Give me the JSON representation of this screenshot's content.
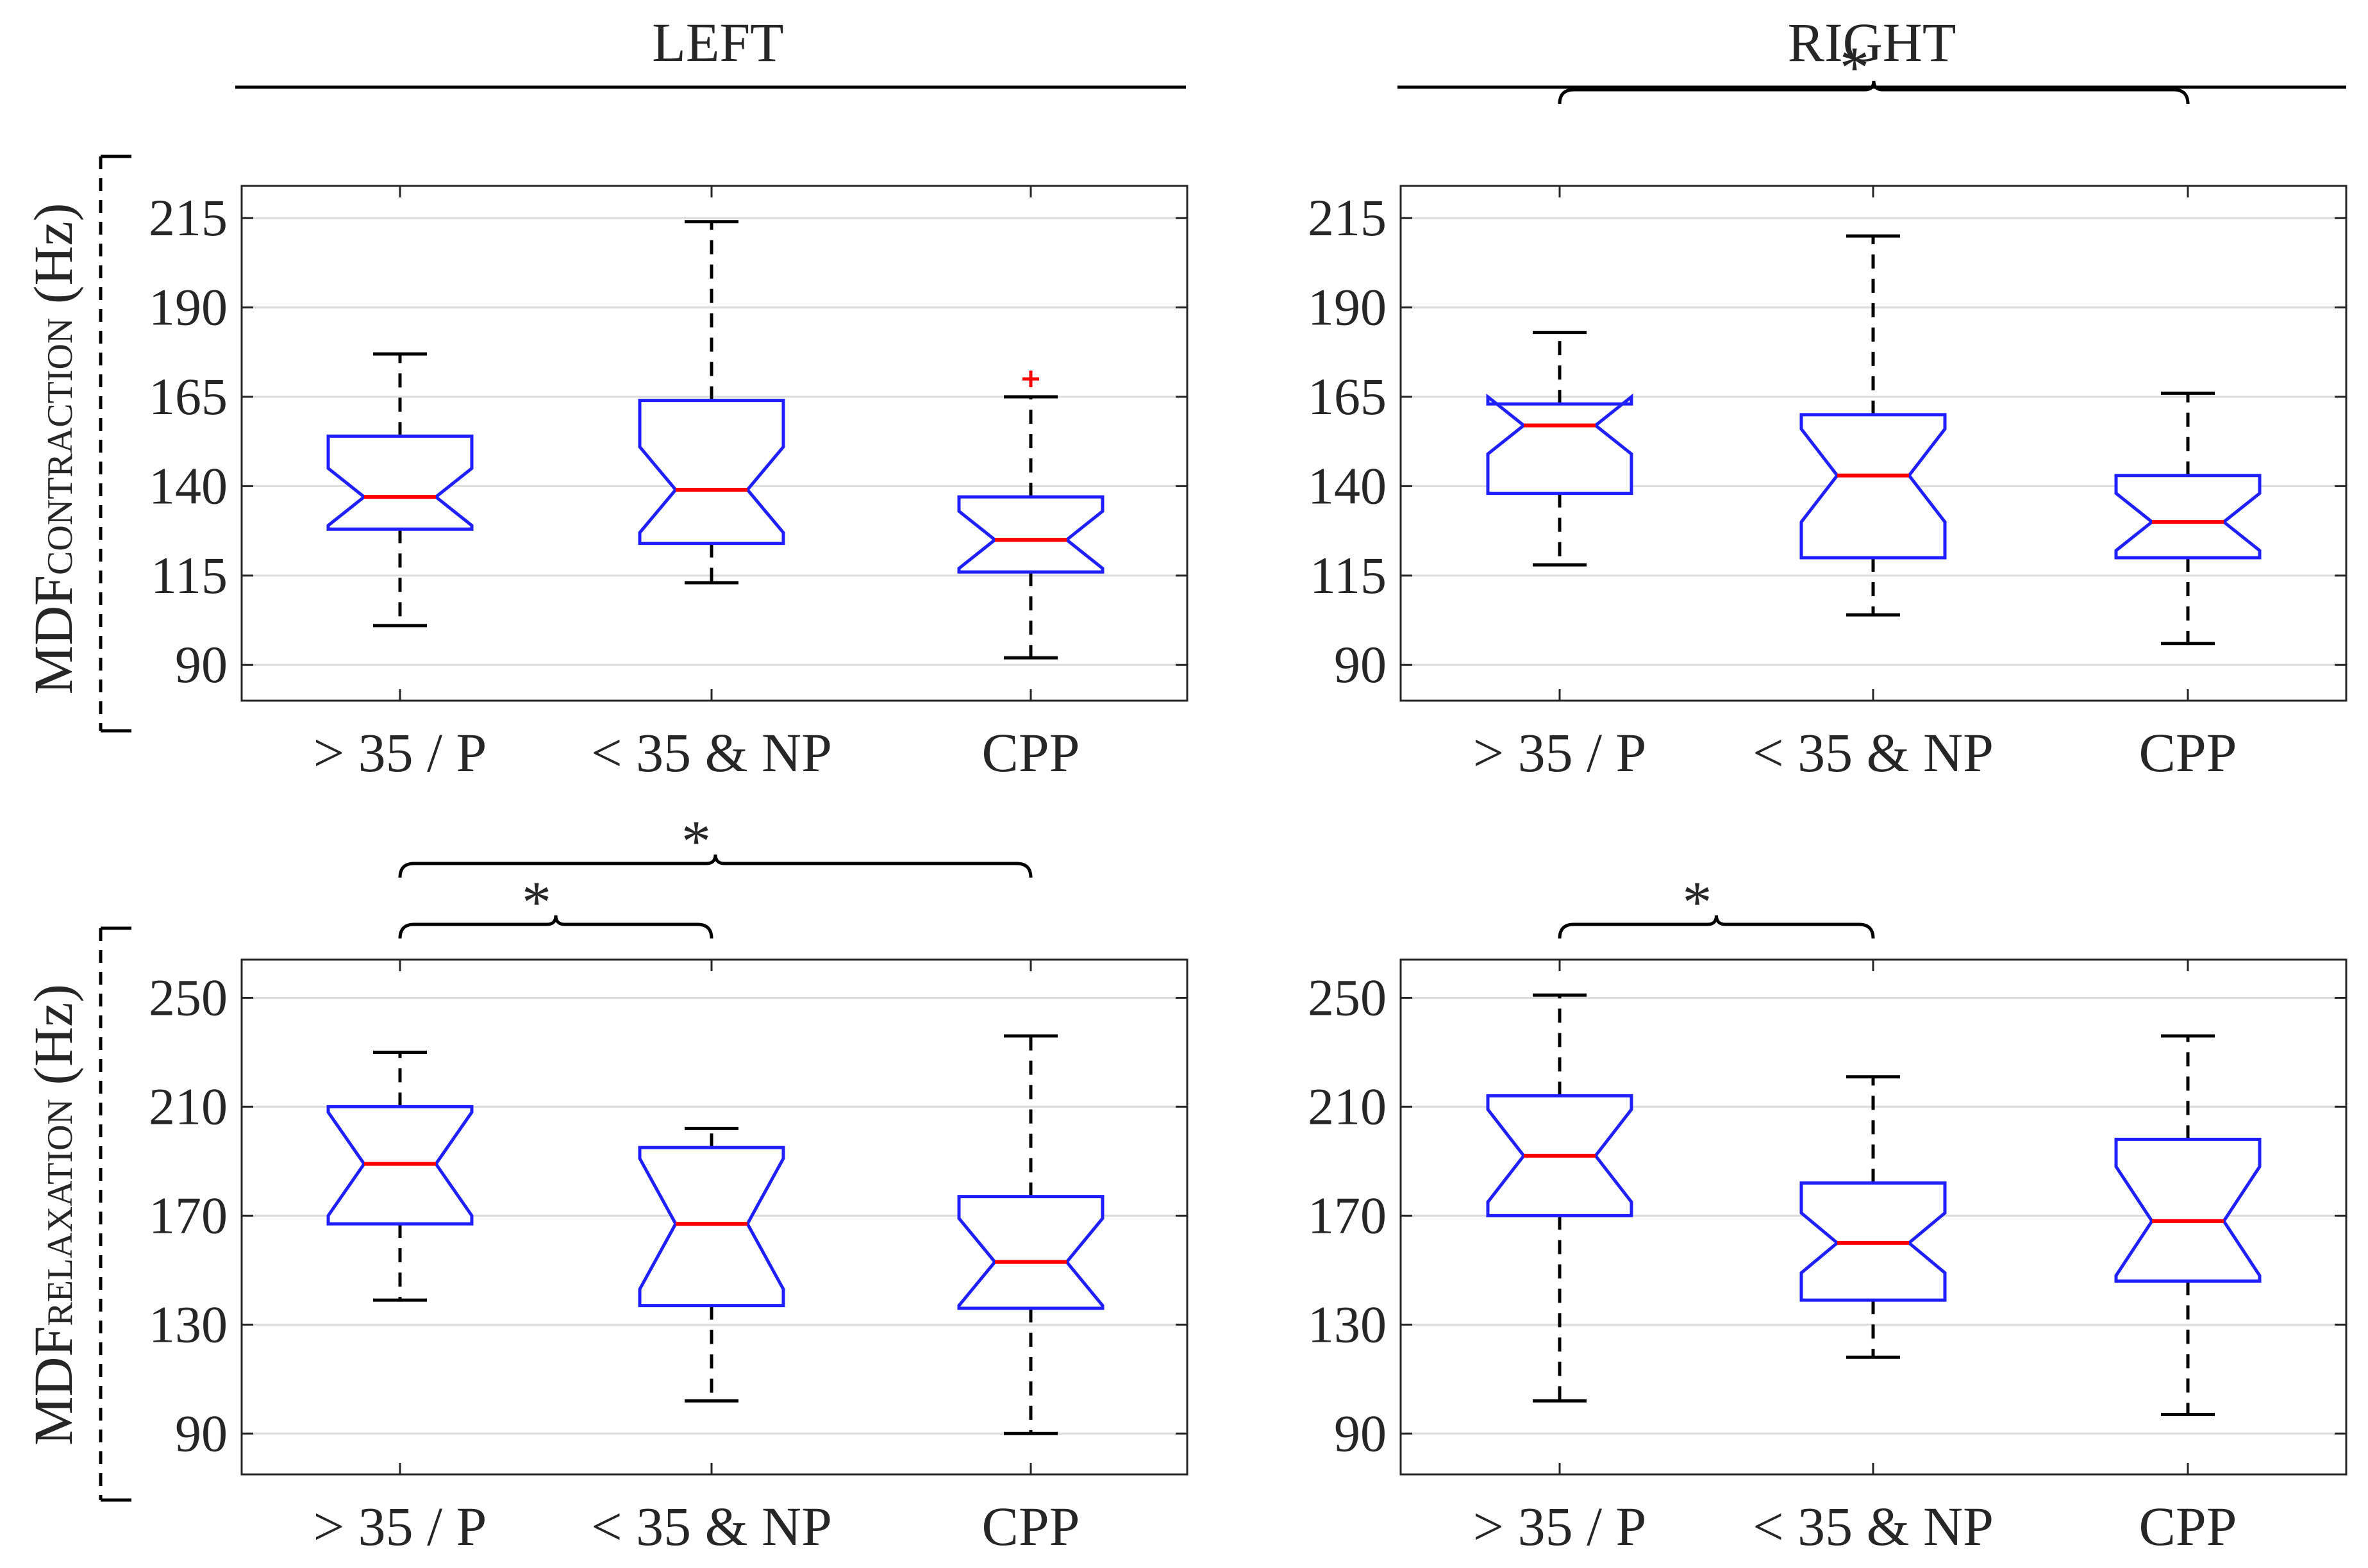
{
  "column_headers": [
    "LEFT",
    "RIGHT"
  ],
  "row_labels": [
    {
      "prefix": "MDF",
      "subscript": "CONTRACTION",
      "unit": " (Hz)"
    },
    {
      "prefix": "MDF",
      "subscript": "RELAXATION",
      "unit": " (Hz)"
    }
  ],
  "colors": {
    "box": "#1f1fff",
    "median": "#ff0000",
    "outlier": "#ff0000",
    "whisker": "#000000",
    "grid": "#dcdcdc",
    "text": "#262626"
  },
  "chart_data": [
    {
      "type": "boxplot",
      "notched": true,
      "side": "LEFT",
      "measure": "contraction",
      "categories": [
        "> 35 / P",
        "< 35 & NP",
        "CPP"
      ],
      "ylabel": "MDF CONTRACTION (Hz)",
      "yticks": [
        90,
        115,
        140,
        165,
        190,
        215
      ],
      "ylim": [
        80,
        224
      ],
      "grid": true,
      "boxes": [
        {
          "whisker_low": 101,
          "q1": 128,
          "notch_low": 129,
          "median": 137,
          "notch_high": 145,
          "q3": 154,
          "whisker_high": 177,
          "outliers": []
        },
        {
          "whisker_low": 113,
          "q1": 124,
          "notch_low": 127,
          "median": 139,
          "notch_high": 151,
          "q3": 164,
          "whisker_high": 214,
          "outliers": []
        },
        {
          "whisker_low": 92,
          "q1": 116,
          "notch_low": 117,
          "median": 125,
          "notch_high": 133,
          "q3": 137,
          "whisker_high": 165,
          "outliers": [
            170
          ]
        }
      ],
      "significance": []
    },
    {
      "type": "boxplot",
      "notched": true,
      "side": "RIGHT",
      "measure": "contraction",
      "categories": [
        "> 35 / P",
        "< 35 & NP",
        "CPP"
      ],
      "ylabel": "",
      "yticks": [
        90,
        115,
        140,
        165,
        190,
        215
      ],
      "ylim": [
        80,
        224
      ],
      "grid": true,
      "boxes": [
        {
          "whisker_low": 118,
          "q1": 138,
          "notch_low": 149,
          "median": 157,
          "notch_high": 165,
          "q3": 163,
          "whisker_high": 183,
          "outliers": []
        },
        {
          "whisker_low": 104,
          "q1": 120,
          "notch_low": 130,
          "median": 143,
          "notch_high": 156,
          "q3": 160,
          "whisker_high": 210,
          "outliers": []
        },
        {
          "whisker_low": 96,
          "q1": 120,
          "notch_low": 122,
          "median": 130,
          "notch_high": 138,
          "q3": 143,
          "whisker_high": 166,
          "outliers": []
        }
      ],
      "significance": [
        {
          "from": 0,
          "to": 2,
          "label": "*"
        }
      ]
    },
    {
      "type": "boxplot",
      "notched": true,
      "side": "LEFT",
      "measure": "relaxation",
      "categories": [
        "> 35 / P",
        "< 35 & NP",
        "CPP"
      ],
      "ylabel": "MDF RELAXATION (Hz)",
      "yticks": [
        90,
        130,
        170,
        210,
        250
      ],
      "ylim": [
        75,
        264
      ],
      "grid": true,
      "boxes": [
        {
          "whisker_low": 139,
          "q1": 167,
          "notch_low": 170,
          "median": 189,
          "notch_high": 208,
          "q3": 210,
          "whisker_high": 230,
          "outliers": []
        },
        {
          "whisker_low": 102,
          "q1": 137,
          "notch_low": 143,
          "median": 167,
          "notch_high": 191,
          "q3": 195,
          "whisker_high": 202,
          "outliers": []
        },
        {
          "whisker_low": 90,
          "q1": 136,
          "notch_low": 137,
          "median": 153,
          "notch_high": 169,
          "q3": 177,
          "whisker_high": 236,
          "outliers": []
        }
      ],
      "significance": [
        {
          "from": 0,
          "to": 1,
          "label": "*"
        },
        {
          "from": 0,
          "to": 2,
          "label": "*"
        }
      ]
    },
    {
      "type": "boxplot",
      "notched": true,
      "side": "RIGHT",
      "measure": "relaxation",
      "categories": [
        "> 35 / P",
        "< 35 & NP",
        "CPP"
      ],
      "ylabel": "",
      "yticks": [
        90,
        130,
        170,
        210,
        250
      ],
      "ylim": [
        75,
        264
      ],
      "grid": true,
      "boxes": [
        {
          "whisker_low": 102,
          "q1": 170,
          "notch_low": 175,
          "median": 192,
          "notch_high": 209,
          "q3": 214,
          "whisker_high": 251,
          "outliers": []
        },
        {
          "whisker_low": 118,
          "q1": 139,
          "notch_low": 149,
          "median": 160,
          "notch_high": 171,
          "q3": 182,
          "whisker_high": 221,
          "outliers": []
        },
        {
          "whisker_low": 97,
          "q1": 146,
          "notch_low": 148,
          "median": 168,
          "notch_high": 188,
          "q3": 198,
          "whisker_high": 236,
          "outliers": []
        }
      ],
      "significance": [
        {
          "from": 0,
          "to": 1,
          "label": "*"
        }
      ]
    }
  ]
}
